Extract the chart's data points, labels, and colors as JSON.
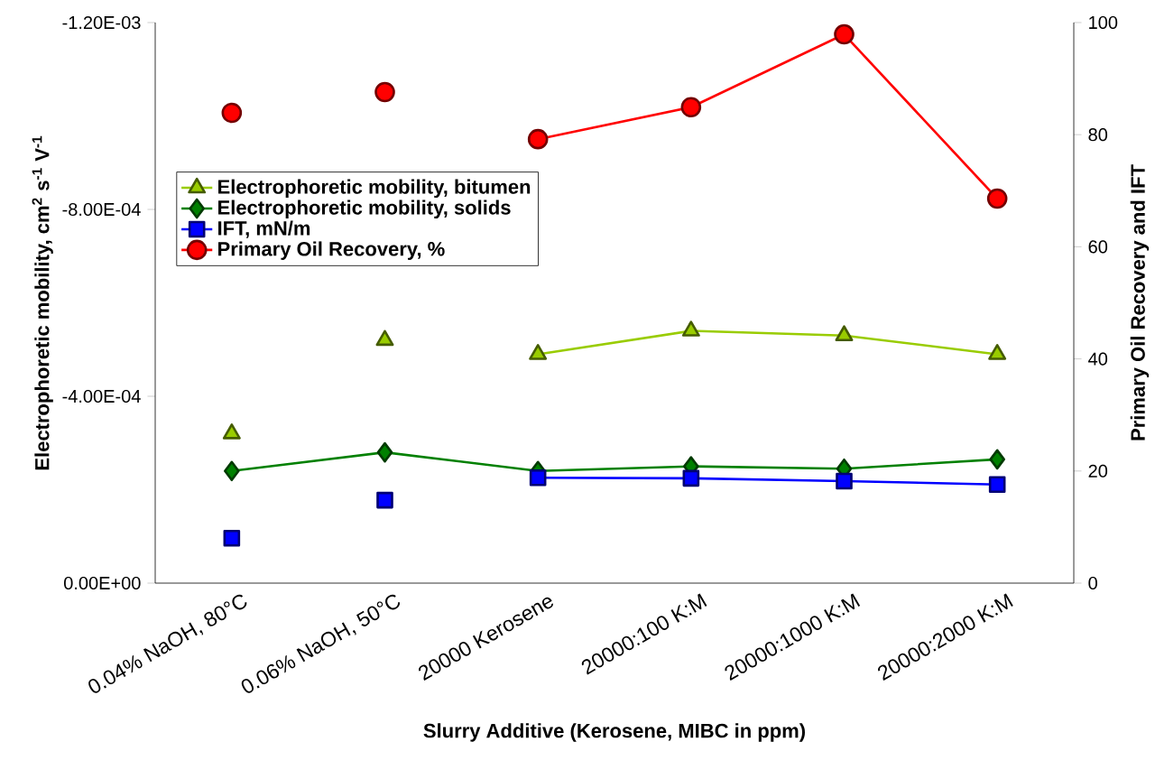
{
  "chart_data": {
    "type": "line",
    "xlabel": "Slurry Additive (Kerosene, MIBC in ppm)",
    "ylabel": "Electrophoretic mobility, cm$^{2}$ s$^{-1}$ V$^{-1}$",
    "y2label": "Primary Oil Recovery and IFT",
    "categories": [
      "0.04% NaOH, 80°C",
      "0.06% NaOH, 50°C",
      "20000 Kerosene",
      "20000:100 K:M",
      "20000:1000 K:M",
      "20000:2000 K:M"
    ],
    "ylim": [
      0,
      -0.0012
    ],
    "yticks": [
      {
        "value": 0,
        "label": "0.00E+00"
      },
      {
        "value": -0.0004,
        "label": "-4.00E-04"
      },
      {
        "value": -0.0008,
        "label": "-8.00E-04"
      },
      {
        "value": -0.0012,
        "label": "-1.20E-03"
      }
    ],
    "y2lim": [
      0,
      100
    ],
    "y2ticks": [
      0,
      20,
      40,
      60,
      80,
      100
    ],
    "legend": "left",
    "grid": false,
    "series": [
      {
        "name": "Electrophoretic mobility, bitumen",
        "marker": "triangle",
        "color": "#99cc00",
        "values": [
          null,
          null,
          -0.00049,
          -0.00054,
          -0.00053,
          -0.00049
        ]
      },
      {
        "type": "scatter",
        "marker": "triangle",
        "color": "#99cc00",
        "values": [
          -0.00032,
          -0.00052,
          null,
          null,
          null,
          null
        ]
      },
      {
        "name": "Electrophoretic mobility, solids",
        "marker": "diamond",
        "color": "#008000",
        "values": [
          -0.00024,
          -0.00028,
          -0.00024,
          -0.00025,
          -0.000245,
          -0.000265
        ]
      },
      {
        "name": "IFT, mN/m",
        "marker": "square",
        "color": "#0000ff",
        "axis": "y2",
        "values": [
          null,
          null,
          18.8,
          18.7,
          18.2,
          17.6
        ]
      },
      {
        "type": "scatter",
        "marker": "square",
        "color": "#0000ff",
        "axis": "y2",
        "values": [
          8,
          14.8,
          null,
          null,
          null,
          null
        ]
      },
      {
        "name": "Primary Oil Recovery, %",
        "marker": "circle",
        "color": "#ff0000",
        "axis": "y2",
        "values": [
          null,
          null,
          79.2,
          84.9,
          97.9,
          68.6
        ]
      },
      {
        "type": "scatter",
        "marker": "circle",
        "color": "#ff0000",
        "axis": "y2",
        "values": [
          83.9,
          87.6,
          null,
          null,
          null,
          null
        ]
      }
    ]
  }
}
